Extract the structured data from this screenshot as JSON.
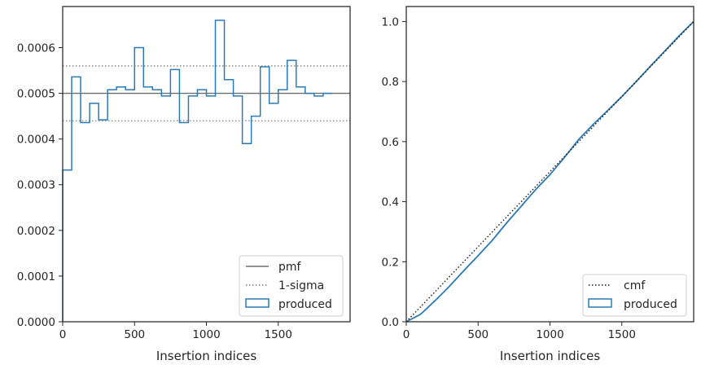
{
  "colors": {
    "histogram": "#2b7bb9",
    "pmf": "#6e6e6e",
    "sigma": "#808080",
    "cmf": "#1a1a1a",
    "axes": "#262626"
  },
  "chart_data": [
    {
      "type": "step",
      "xlabel": "Insertion indices",
      "ylabel": "",
      "xlim": [
        0,
        2000
      ],
      "ylim": [
        0,
        0.00069
      ],
      "x_ticks": [
        0,
        500,
        1000,
        1500
      ],
      "x_tick_labels": [
        "0",
        "500",
        "1000",
        "1500"
      ],
      "y_ticks": [
        0,
        0.0001,
        0.0002,
        0.0003,
        0.0004,
        0.0005,
        0.0006
      ],
      "y_tick_labels": [
        "0.0000",
        "0.0001",
        "0.0002",
        "0.0003",
        "0.0004",
        "0.0005",
        "0.0006"
      ],
      "legend_position": "lower right",
      "legend": [
        "pmf",
        "1-sigma",
        "produced"
      ],
      "pmf": 0.0005,
      "sigma_band": [
        0.00044,
        0.00056
      ],
      "bin_width": 62.5,
      "produced": [
        0.000332,
        0.000536,
        0.000436,
        0.000478,
        0.000442,
        0.000508,
        0.000514,
        0.000508,
        0.0006,
        0.000514,
        0.000508,
        0.000494,
        0.000552,
        0.000436,
        0.000494,
        0.000508,
        0.000494,
        0.00066,
        0.00053,
        0.000494,
        0.00039,
        0.00045,
        0.000558,
        0.000478,
        0.000508,
        0.000572,
        0.000514,
        0.0005,
        0.000494,
        0.0005
      ]
    },
    {
      "type": "line",
      "xlabel": "Insertion indices",
      "ylabel": "",
      "xlim": [
        0,
        2000
      ],
      "ylim": [
        0,
        1.05
      ],
      "x_ticks": [
        0,
        500,
        1000,
        1500
      ],
      "x_tick_labels": [
        "0",
        "500",
        "1000",
        "1500"
      ],
      "y_ticks": [
        0,
        0.2,
        0.4,
        0.6,
        0.8,
        1.0
      ],
      "y_tick_labels": [
        "0.0",
        "0.2",
        "0.4",
        "0.6",
        "0.8",
        "1.0"
      ],
      "legend_position": "lower right",
      "legend": [
        "cmf",
        "produced"
      ],
      "cmf": {
        "x": [
          0,
          2000
        ],
        "y": [
          0,
          1.0
        ]
      },
      "produced": {
        "x": [
          0,
          100,
          200,
          300,
          400,
          500,
          600,
          700,
          800,
          900,
          1000,
          1100,
          1200,
          1300,
          1400,
          1500,
          1600,
          1700,
          1800,
          1900,
          2000
        ],
        "y": [
          0,
          0.025,
          0.07,
          0.118,
          0.17,
          0.22,
          0.272,
          0.33,
          0.385,
          0.44,
          0.49,
          0.547,
          0.607,
          0.657,
          0.703,
          0.75,
          0.8,
          0.852,
          0.902,
          0.953,
          1.0
        ]
      }
    }
  ]
}
